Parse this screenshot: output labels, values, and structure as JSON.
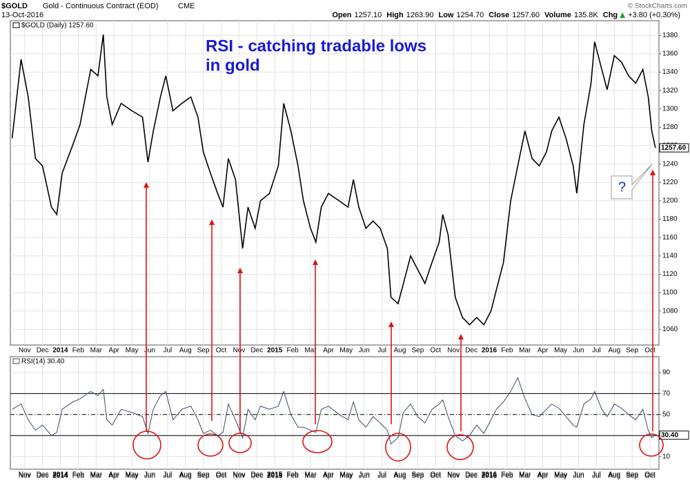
{
  "header": {
    "symbol": "$GOLD",
    "name": "Gold - Continuous Contract (EOD)",
    "exchange": "CME",
    "date": "13-Oct-2016",
    "quote": [
      {
        "label": "Open",
        "value": "1257.10"
      },
      {
        "label": "High",
        "value": "1263.90"
      },
      {
        "label": "Low",
        "value": "1254.70"
      },
      {
        "label": "Close",
        "value": "1257.60"
      },
      {
        "label": "Volume",
        "value": "135.8K"
      },
      {
        "label": "Chg",
        "value": "+3.80 (+0.30%)"
      }
    ],
    "copyright": "© StockCharts.com"
  },
  "chart_data": [
    {
      "type": "line",
      "annotation_lines": [
        "RSI - catching tradable lows",
        "in gold"
      ],
      "callout": "?",
      "last_label": "1257.60",
      "x": [
        -0.2,
        0.3,
        0.7,
        1.1,
        1.5,
        2.0,
        2.3,
        2.6,
        3.2,
        3.6,
        4.2,
        4.6,
        4.9,
        5.1,
        5.4,
        5.9,
        6.5,
        7.1,
        7.4,
        7.7,
        8.1,
        8.4,
        8.8,
        9.3,
        9.8,
        10.2,
        10.5,
        10.9,
        11.3,
        11.6,
        11.9,
        12.3,
        12.7,
        13.0,
        13.4,
        13.7,
        14.2,
        14.7,
        15.0,
        15.4,
        15.8,
        16.1,
        16.5,
        16.8,
        17.1,
        17.5,
        18.1,
        18.6,
        18.9,
        19.2,
        19.6,
        20.0,
        20.4,
        20.8,
        21.0,
        21.4,
        21.7,
        22.1,
        22.5,
        22.9,
        23.3,
        23.7,
        23.9,
        24.2,
        24.6,
        25.0,
        25.4,
        25.8,
        26.2,
        26.6,
        26.9,
        27.3,
        27.7,
        28.1,
        28.5,
        28.9,
        29.3,
        29.7,
        30.0,
        30.4,
        30.8,
        31.2,
        31.4,
        31.8,
        32.2,
        32.4,
        32.8,
        33.1,
        33.5,
        33.9,
        34.3,
        34.7,
        35.1,
        35.4,
        35.6,
        35.8
      ],
      "series": [
        {
          "name": "$GOLD (Daily) 1257.60",
          "color": "#000000",
          "values": [
            1268,
            1354,
            1313,
            1246,
            1238,
            1193,
            1185,
            1230,
            1261,
            1283,
            1343,
            1336,
            1381,
            1313,
            1283,
            1306,
            1298,
            1291,
            1242,
            1276,
            1313,
            1336,
            1298,
            1306,
            1313,
            1291,
            1253,
            1230,
            1208,
            1193,
            1246,
            1223,
            1148,
            1193,
            1170,
            1200,
            1208,
            1238,
            1306,
            1276,
            1238,
            1200,
            1170,
            1155,
            1193,
            1208,
            1200,
            1193,
            1223,
            1193,
            1170,
            1178,
            1170,
            1148,
            1095,
            1088,
            1110,
            1140,
            1125,
            1110,
            1133,
            1155,
            1185,
            1163,
            1095,
            1073,
            1065,
            1073,
            1065,
            1080,
            1103,
            1133,
            1200,
            1238,
            1276,
            1246,
            1238,
            1253,
            1276,
            1291,
            1268,
            1238,
            1208,
            1283,
            1328,
            1373,
            1343,
            1321,
            1358,
            1351,
            1336,
            1328,
            1343,
            1313,
            1276,
            1257.6
          ]
        }
      ],
      "xlim": [
        -0.3,
        36
      ],
      "ylim": [
        1043,
        1396
      ],
      "yticks": [
        1060,
        1080,
        1100,
        1120,
        1140,
        1160,
        1180,
        1200,
        1220,
        1240,
        1260,
        1280,
        1300,
        1320,
        1340,
        1360,
        1380
      ],
      "xticks": [
        {
          "value": 0.5,
          "label": "Nov"
        },
        {
          "value": 1.5,
          "label": "Dec"
        },
        {
          "value": 2.5,
          "label": "2014"
        },
        {
          "value": 3.5,
          "label": "Feb"
        },
        {
          "value": 4.5,
          "label": "Mar"
        },
        {
          "value": 5.5,
          "label": "Apr"
        },
        {
          "value": 6.5,
          "label": "May"
        },
        {
          "value": 7.5,
          "label": "Jun"
        },
        {
          "value": 8.5,
          "label": "Jul"
        },
        {
          "value": 9.5,
          "label": "Aug"
        },
        {
          "value": 10.5,
          "label": "Sep"
        },
        {
          "value": 11.5,
          "label": "Oct"
        },
        {
          "value": 12.5,
          "label": "Nov"
        },
        {
          "value": 13.5,
          "label": "Dec"
        },
        {
          "value": 14.5,
          "label": "2015"
        },
        {
          "value": 15.5,
          "label": "Feb"
        },
        {
          "value": 16.5,
          "label": "Mar"
        },
        {
          "value": 17.5,
          "label": "Apr"
        },
        {
          "value": 18.5,
          "label": "May"
        },
        {
          "value": 19.5,
          "label": "Jun"
        },
        {
          "value": 20.5,
          "label": "Jul"
        },
        {
          "value": 21.5,
          "label": "Aug"
        },
        {
          "value": 22.5,
          "label": "Sep"
        },
        {
          "value": 23.5,
          "label": "Oct"
        },
        {
          "value": 24.5,
          "label": "Nov"
        },
        {
          "value": 25.5,
          "label": "Dec"
        },
        {
          "value": 26.5,
          "label": "2016"
        },
        {
          "value": 27.5,
          "label": "Feb"
        },
        {
          "value": 28.5,
          "label": "Mar"
        },
        {
          "value": 29.5,
          "label": "Apr"
        },
        {
          "value": 30.5,
          "label": "May"
        },
        {
          "value": 31.5,
          "label": "Jun"
        },
        {
          "value": 32.5,
          "label": "Jul"
        },
        {
          "value": 33.5,
          "label": "Aug"
        },
        {
          "value": 34.5,
          "label": "Sep"
        },
        {
          "value": 35.5,
          "label": "Oct"
        }
      ],
      "grid": true
    },
    {
      "type": "line",
      "last_label": "30.40",
      "x": [
        -0.2,
        0.3,
        0.7,
        1.1,
        1.5,
        2.0,
        2.3,
        2.6,
        3.2,
        3.6,
        4.2,
        4.6,
        4.9,
        5.1,
        5.4,
        5.9,
        6.5,
        7.1,
        7.4,
        7.7,
        8.1,
        8.4,
        8.8,
        9.3,
        9.8,
        10.2,
        10.5,
        10.9,
        11.3,
        11.6,
        11.9,
        12.3,
        12.7,
        13.0,
        13.4,
        13.7,
        14.2,
        14.7,
        15.0,
        15.4,
        15.8,
        16.1,
        16.5,
        16.8,
        17.1,
        17.5,
        18.1,
        18.6,
        18.9,
        19.2,
        19.6,
        20.0,
        20.4,
        20.8,
        21.0,
        21.4,
        21.7,
        22.1,
        22.5,
        22.9,
        23.3,
        23.7,
        23.9,
        24.2,
        24.6,
        25.0,
        25.4,
        25.8,
        26.2,
        26.6,
        26.9,
        27.3,
        27.7,
        28.1,
        28.5,
        28.9,
        29.3,
        29.7,
        30.0,
        30.4,
        30.8,
        31.2,
        31.4,
        31.8,
        32.2,
        32.4,
        32.8,
        33.1,
        33.5,
        33.9,
        34.3,
        34.7,
        35.1,
        35.4,
        35.6,
        35.8
      ],
      "series": [
        {
          "name": "RSI(14) 30.40",
          "color": "#3a4a6b",
          "values": [
            55,
            60,
            45,
            35,
            40,
            30,
            33,
            55,
            62,
            65,
            72,
            68,
            74,
            45,
            40,
            55,
            52,
            48,
            32,
            55,
            68,
            72,
            45,
            55,
            58,
            45,
            32,
            35,
            30,
            33,
            60,
            45,
            28,
            55,
            45,
            58,
            55,
            58,
            72,
            50,
            38,
            38,
            35,
            33,
            55,
            58,
            50,
            45,
            62,
            45,
            38,
            48,
            42,
            35,
            22,
            28,
            52,
            60,
            48,
            42,
            55,
            60,
            64,
            48,
            30,
            25,
            30,
            40,
            32,
            45,
            55,
            62,
            72,
            85,
            65,
            50,
            48,
            55,
            60,
            56,
            48,
            40,
            38,
            60,
            65,
            72,
            55,
            48,
            60,
            56,
            50,
            45,
            55,
            35,
            28,
            30.4
          ]
        }
      ],
      "xlim": [
        -0.3,
        36
      ],
      "ylim": [
        -2,
        105
      ],
      "yticks": [
        10,
        30,
        50,
        70,
        90
      ],
      "reference_lines": [
        {
          "value": 70,
          "style": "solid"
        },
        {
          "value": 50,
          "style": "dashdot"
        },
        {
          "value": 30,
          "style": "solid"
        }
      ],
      "xticks": [
        {
          "value": 0.5,
          "label": "Nov"
        },
        {
          "value": 1.5,
          "label": "Dec"
        },
        {
          "value": 2.5,
          "label": "2014"
        },
        {
          "value": 3.5,
          "label": "Feb"
        },
        {
          "value": 4.5,
          "label": "Mar"
        },
        {
          "value": 5.5,
          "label": "Apr"
        },
        {
          "value": 6.5,
          "label": "May"
        },
        {
          "value": 7.5,
          "label": "Jun"
        },
        {
          "value": 8.5,
          "label": "Jul"
        },
        {
          "value": 9.5,
          "label": "Aug"
        },
        {
          "value": 10.5,
          "label": "Sep"
        },
        {
          "value": 11.5,
          "label": "Oct"
        },
        {
          "value": 12.5,
          "label": "Nov"
        },
        {
          "value": 13.5,
          "label": "Dec"
        },
        {
          "value": 14.5,
          "label": "2015"
        },
        {
          "value": 15.5,
          "label": "Feb"
        },
        {
          "value": 16.5,
          "label": "Mar"
        },
        {
          "value": 17.5,
          "label": "Apr"
        },
        {
          "value": 18.5,
          "label": "May"
        },
        {
          "value": 19.5,
          "label": "Jun"
        },
        {
          "value": 20.5,
          "label": "Jul"
        },
        {
          "value": 21.5,
          "label": "Aug"
        },
        {
          "value": 22.5,
          "label": "Sep"
        },
        {
          "value": 23.5,
          "label": "Oct"
        },
        {
          "value": 24.5,
          "label": "Nov"
        },
        {
          "value": 25.5,
          "label": "Dec"
        },
        {
          "value": 26.5,
          "label": "2016"
        },
        {
          "value": 27.5,
          "label": "Feb"
        },
        {
          "value": 28.5,
          "label": "Mar"
        },
        {
          "value": 29.5,
          "label": "Apr"
        },
        {
          "value": 30.5,
          "label": "May"
        },
        {
          "value": 31.5,
          "label": "Jun"
        },
        {
          "value": 32.5,
          "label": "Jul"
        },
        {
          "value": 33.5,
          "label": "Aug"
        },
        {
          "value": 34.5,
          "label": "Sep"
        },
        {
          "value": 35.5,
          "label": "Oct"
        }
      ],
      "grid": true
    }
  ]
}
